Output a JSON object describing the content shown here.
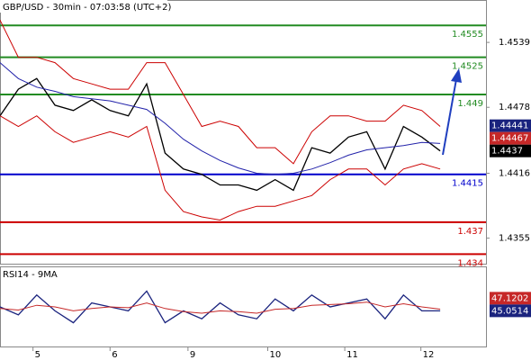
{
  "chart_data": [
    {
      "type": "line",
      "title": "GBP/USD - 30min - 07:03:58 (UTC+2)",
      "xlim": [
        0,
        53
      ],
      "ylim": [
        1.4331,
        1.4578
      ],
      "yticks": [
        1.4539,
        1.4478,
        1.4416,
        1.4355
      ],
      "series": [
        {
          "x": [
            0,
            2,
            4,
            6,
            8,
            10,
            12,
            14,
            16,
            18,
            20,
            22,
            24,
            26,
            28,
            30,
            32,
            34,
            36,
            38,
            40,
            42,
            44,
            46,
            48
          ],
          "color": "#000000",
          "values": [
            1.447,
            1.4495,
            1.4505,
            1.448,
            1.4475,
            1.4485,
            1.4475,
            1.447,
            1.45,
            1.4435,
            1.442,
            1.4415,
            1.4405,
            1.4405,
            1.44,
            1.441,
            1.44,
            1.444,
            1.4435,
            1.445,
            1.4455,
            1.442,
            1.446,
            1.445,
            1.4437
          ]
        },
        {
          "x": [
            0,
            2,
            4,
            6,
            8,
            10,
            12,
            14,
            16,
            18,
            20,
            22,
            24,
            26,
            28,
            30,
            32,
            34,
            36,
            38,
            40,
            42,
            44,
            46,
            48
          ],
          "color": "#2222aa",
          "values": [
            1.452,
            1.4505,
            1.4497,
            1.4493,
            1.4488,
            1.4486,
            1.4484,
            1.448,
            1.4476,
            1.4463,
            1.4448,
            1.4437,
            1.4428,
            1.4421,
            1.4416,
            1.4415,
            1.4416,
            1.442,
            1.4426,
            1.4433,
            1.4438,
            1.444,
            1.4442,
            1.4445,
            1.4444
          ]
        },
        {
          "x": [
            0,
            2,
            4,
            6,
            8,
            10,
            12,
            14,
            16,
            18,
            20,
            22,
            24,
            26,
            28,
            30,
            32,
            34,
            36,
            38,
            40,
            42,
            44,
            46,
            48
          ],
          "color": "#cc0000",
          "values": [
            1.456,
            1.4525,
            1.4525,
            1.452,
            1.4505,
            1.45,
            1.4495,
            1.4495,
            1.452,
            1.452,
            1.449,
            1.446,
            1.4465,
            1.446,
            1.444,
            1.444,
            1.4425,
            1.4455,
            1.447,
            1.447,
            1.4465,
            1.4465,
            1.448,
            1.4475,
            1.446
          ]
        },
        {
          "x": [
            0,
            2,
            4,
            6,
            8,
            10,
            12,
            14,
            16,
            18,
            20,
            22,
            24,
            26,
            28,
            30,
            32,
            34,
            36,
            38,
            40,
            42,
            44,
            46,
            48
          ],
          "color": "#cc0000",
          "values": [
            1.447,
            1.446,
            1.447,
            1.4455,
            1.4445,
            1.445,
            1.4455,
            1.445,
            1.446,
            1.44,
            1.438,
            1.4375,
            1.4372,
            1.438,
            1.4385,
            1.4385,
            1.439,
            1.4395,
            1.441,
            1.442,
            1.442,
            1.4405,
            1.442,
            1.4425,
            1.442
          ]
        }
      ],
      "levels": [
        {
          "value": 1.4555,
          "color": "#228b22"
        },
        {
          "value": 1.4525,
          "color": "#228b22"
        },
        {
          "value": 1.449,
          "color": "#228b22"
        },
        {
          "value": 1.4415,
          "color": "#0000cc"
        },
        {
          "value": 1.437,
          "color": "#cc0000"
        },
        {
          "value": 1.434,
          "color": "#cc0000"
        }
      ],
      "price_tags": [
        {
          "value": 1.44441,
          "color": "#1a237e"
        },
        {
          "value": 1.44467,
          "color": "#c62828"
        },
        {
          "value": 1.4437,
          "color": "#000000"
        }
      ]
    },
    {
      "type": "line",
      "title": "RSI14 - 9MA",
      "xlim": [
        0,
        53
      ],
      "ylim": [
        0,
        100
      ],
      "xticks": [
        {
          "value": 3.6,
          "label": "5"
        },
        {
          "value": 12,
          "label": "6"
        },
        {
          "value": 20.5,
          "label": "9"
        },
        {
          "value": 29.2,
          "label": "10"
        },
        {
          "value": 37.6,
          "label": "11"
        },
        {
          "value": 45.9,
          "label": "12"
        }
      ],
      "series": [
        {
          "x": [
            0,
            2,
            4,
            6,
            8,
            10,
            12,
            14,
            16,
            18,
            20,
            22,
            24,
            26,
            28,
            30,
            32,
            34,
            36,
            38,
            40,
            42,
            44,
            46,
            48
          ],
          "color": "#1a237e",
          "values": [
            50,
            40,
            65,
            45,
            30,
            55,
            50,
            45,
            70,
            30,
            45,
            35,
            55,
            40,
            35,
            60,
            45,
            65,
            50,
            55,
            60,
            35,
            65,
            45,
            45.0514
          ]
        },
        {
          "x": [
            0,
            2,
            4,
            6,
            8,
            10,
            12,
            14,
            16,
            18,
            20,
            22,
            24,
            26,
            28,
            30,
            32,
            34,
            36,
            38,
            40,
            42,
            44,
            46,
            48
          ],
          "color": "#c62828",
          "values": [
            48,
            46,
            52,
            50,
            45,
            48,
            50,
            49,
            55,
            48,
            44,
            42,
            45,
            44,
            42,
            47,
            48,
            52,
            53,
            54,
            56,
            50,
            54,
            50,
            47.1202
          ]
        }
      ],
      "price_tags": [
        {
          "value": 47.1202,
          "color": "#c62828"
        },
        {
          "value": 45.0514,
          "color": "#1a237e"
        }
      ]
    }
  ]
}
